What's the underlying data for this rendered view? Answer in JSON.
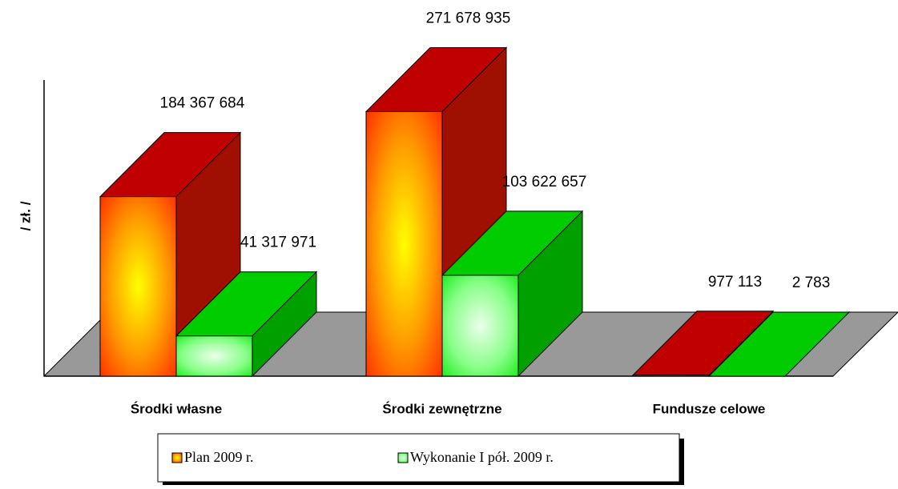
{
  "chart_data": {
    "type": "bar3d",
    "y_label": "/ zł. /",
    "categories": [
      "Środki własne",
      "Środki zewnętrzne",
      "Fundusze celowe"
    ],
    "series": [
      {
        "name": "Plan 2009 r.",
        "color": "#c00000",
        "values": [
          184367684,
          271678935,
          977113
        ],
        "value_labels": [
          "184 367 684",
          "271 678 935",
          "977 113"
        ]
      },
      {
        "name": "Wykonanie I pół. 2009 r.",
        "color": "#00c000",
        "values": [
          41317971,
          103622657,
          2783
        ],
        "value_labels": [
          "41 317 971",
          "103 622 657",
          "2 783"
        ]
      }
    ],
    "ylim": [
      0,
      300000000
    ]
  }
}
